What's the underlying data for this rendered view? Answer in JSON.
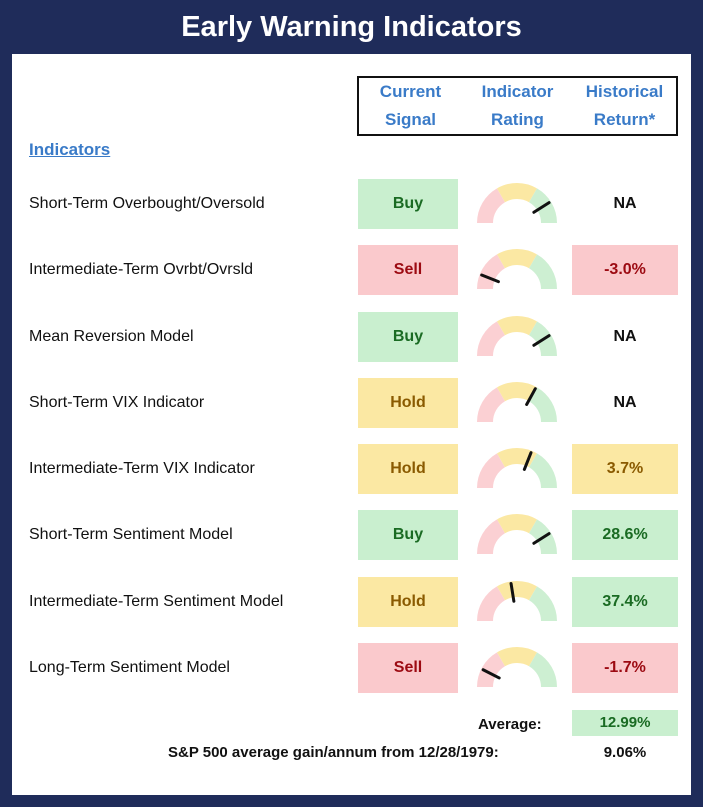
{
  "title": "Early Warning Indicators",
  "headers": {
    "current_signal": [
      "Current",
      "Signal"
    ],
    "indicator_rating": [
      "Indicator",
      "Rating"
    ],
    "historical_return": [
      "Historical",
      "Return*"
    ]
  },
  "indicators_label": "Indicators",
  "colors": {
    "frame": "#1f2c5a",
    "header_text": "#3a7bc8",
    "buy_bg": "#c9efcf",
    "sell_bg": "#fac9cc",
    "hold_bg": "#fbe8a3"
  },
  "rows": [
    {
      "name": "Short-Term Overbought/Oversold",
      "signal": "Buy",
      "rating": 0.82,
      "return": "NA"
    },
    {
      "name": "Intermediate-Term Ovrbt/Ovrsld",
      "signal": "Sell",
      "rating": 0.12,
      "return": "-3.0%"
    },
    {
      "name": "Mean Reversion Model",
      "signal": "Buy",
      "rating": 0.82,
      "return": "NA"
    },
    {
      "name": "Short-Term VIX Indicator",
      "signal": "Hold",
      "rating": 0.66,
      "return": "NA"
    },
    {
      "name": "Intermediate-Term VIX Indicator",
      "signal": "Hold",
      "rating": 0.62,
      "return": "3.7%"
    },
    {
      "name": "Short-Term Sentiment Model",
      "signal": "Buy",
      "rating": 0.82,
      "return": "28.6%"
    },
    {
      "name": "Intermediate-Term Sentiment Model",
      "signal": "Hold",
      "rating": 0.45,
      "return": "37.4%"
    },
    {
      "name": "Long-Term Sentiment Model",
      "signal": "Sell",
      "rating": 0.15,
      "return": "-1.7%"
    }
  ],
  "average": {
    "label": "Average:",
    "value": "12.99%"
  },
  "sp500": {
    "label": "S&P 500 average gain/annum from 12/28/1979:",
    "value": "9.06%"
  }
}
